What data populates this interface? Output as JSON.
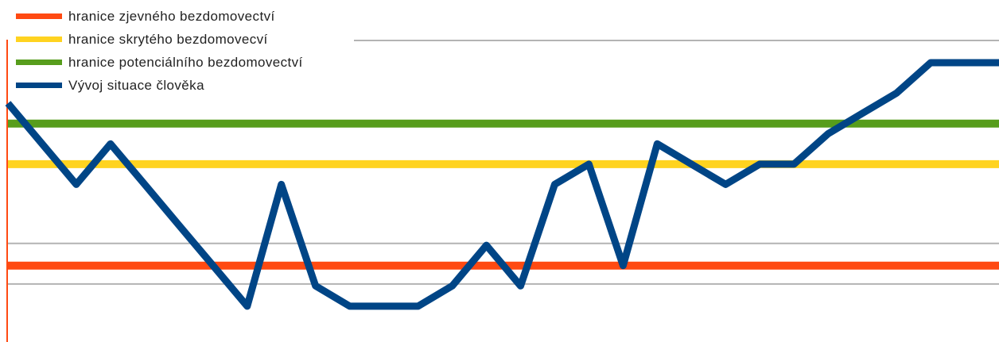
{
  "chart_data": {
    "type": "line",
    "x": [
      0,
      1,
      2,
      3,
      4,
      5,
      6,
      7,
      8,
      9,
      10,
      11,
      12,
      13,
      14,
      15,
      16,
      17,
      18,
      19,
      20,
      21,
      22,
      23,
      24,
      25,
      26,
      27,
      28,
      29
    ],
    "ylim": [
      0,
      7
    ],
    "gridlines": [
      1,
      2,
      4,
      5,
      7
    ],
    "grid": true,
    "legend_position": "top-left",
    "series": [
      {
        "name": "hranice zjevného bezdomovectví",
        "kind": "threshold",
        "value": 2,
        "color": "#FF4A12"
      },
      {
        "name": "hranice skrytého bezdomovecví",
        "kind": "threshold",
        "value": 4.5,
        "color": "#FFD320"
      },
      {
        "name": "hranice potenciálního bezdomovectví",
        "kind": "threshold",
        "value": 5.5,
        "color": "#579D1C"
      },
      {
        "name": "Vývoj situace člověka",
        "kind": "line",
        "color": "#004586",
        "values": [
          6.0,
          5.0,
          4.0,
          5.0,
          4.0,
          3.0,
          2.0,
          1.0,
          4.0,
          1.5,
          1.0,
          1.0,
          1.0,
          1.5,
          2.5,
          1.5,
          4.0,
          4.5,
          2.0,
          5.0,
          4.5,
          4.0,
          4.5,
          4.5,
          5.25,
          5.75,
          6.25,
          7.0,
          7.0,
          7.0
        ]
      }
    ]
  }
}
